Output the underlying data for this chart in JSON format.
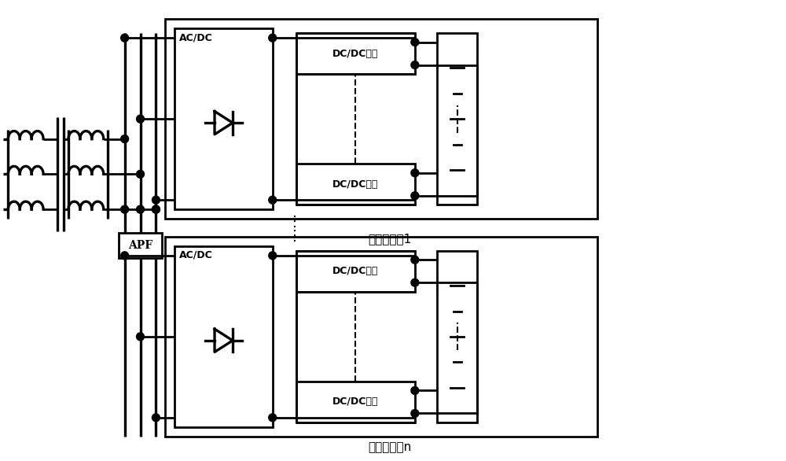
{
  "bg_color": "#ffffff",
  "line_color": "#000000",
  "lw": 2.0,
  "fig_width": 10.0,
  "fig_height": 5.86,
  "dpi": 100,
  "label_pile1": "直流充电桩1",
  "label_pilen": "直流充电桩n",
  "label_acdc": "AC/DC",
  "label_dcdc": "DC/DC模块",
  "label_apf": "APF",
  "xlim": [
    0,
    10
  ],
  "ylim": [
    0,
    5.86
  ]
}
